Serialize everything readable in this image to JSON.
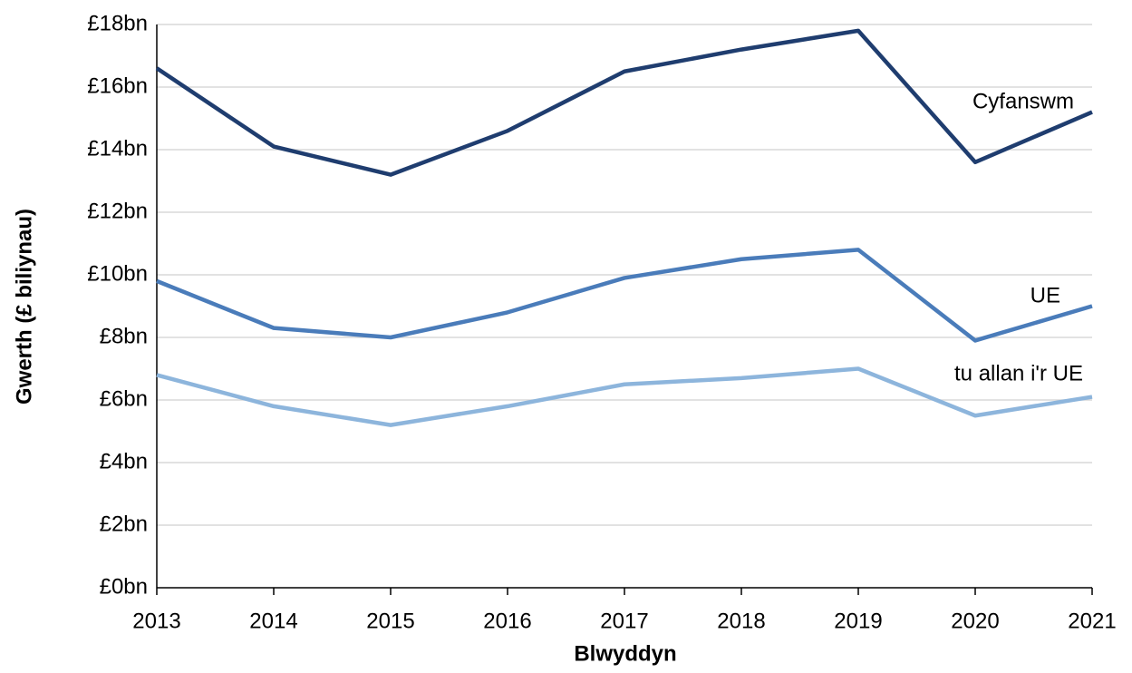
{
  "chart_data": {
    "type": "line",
    "x_label": "Blwyddyn",
    "y_label": "Gwerth (£ biliynau)",
    "x": [
      2013,
      2014,
      2015,
      2016,
      2017,
      2018,
      2019,
      2020,
      2021
    ],
    "xlim": [
      2013,
      2021
    ],
    "xticks": [
      2013,
      2014,
      2015,
      2016,
      2017,
      2018,
      2019,
      2020,
      2021
    ],
    "ylim": [
      0,
      18
    ],
    "yticks": [
      {
        "value": 0,
        "label": "£0bn"
      },
      {
        "value": 2,
        "label": "£2bn"
      },
      {
        "value": 4,
        "label": "£4bn"
      },
      {
        "value": 6,
        "label": "£6bn"
      },
      {
        "value": 8,
        "label": "£8bn"
      },
      {
        "value": 10,
        "label": "£10bn"
      },
      {
        "value": 12,
        "label": "£12bn"
      },
      {
        "value": 14,
        "label": "£14bn"
      },
      {
        "value": 16,
        "label": "£16bn"
      },
      {
        "value": 18,
        "label": "£18bn"
      }
    ],
    "grid": true,
    "series": [
      {
        "name": "Cyfanswm",
        "color": "#1f3d6f",
        "values": [
          16.6,
          14.1,
          13.2,
          14.6,
          16.5,
          17.2,
          17.8,
          13.6,
          15.2
        ]
      },
      {
        "name": "UE",
        "color": "#4a7cba",
        "values": [
          9.8,
          8.3,
          8.0,
          8.8,
          9.9,
          10.5,
          10.8,
          7.9,
          9.0
        ]
      },
      {
        "name": "tu allan i'r UE",
        "color": "#8db5dc",
        "values": [
          6.8,
          5.8,
          5.2,
          5.8,
          6.5,
          6.7,
          7.0,
          5.5,
          6.1
        ]
      }
    ]
  }
}
